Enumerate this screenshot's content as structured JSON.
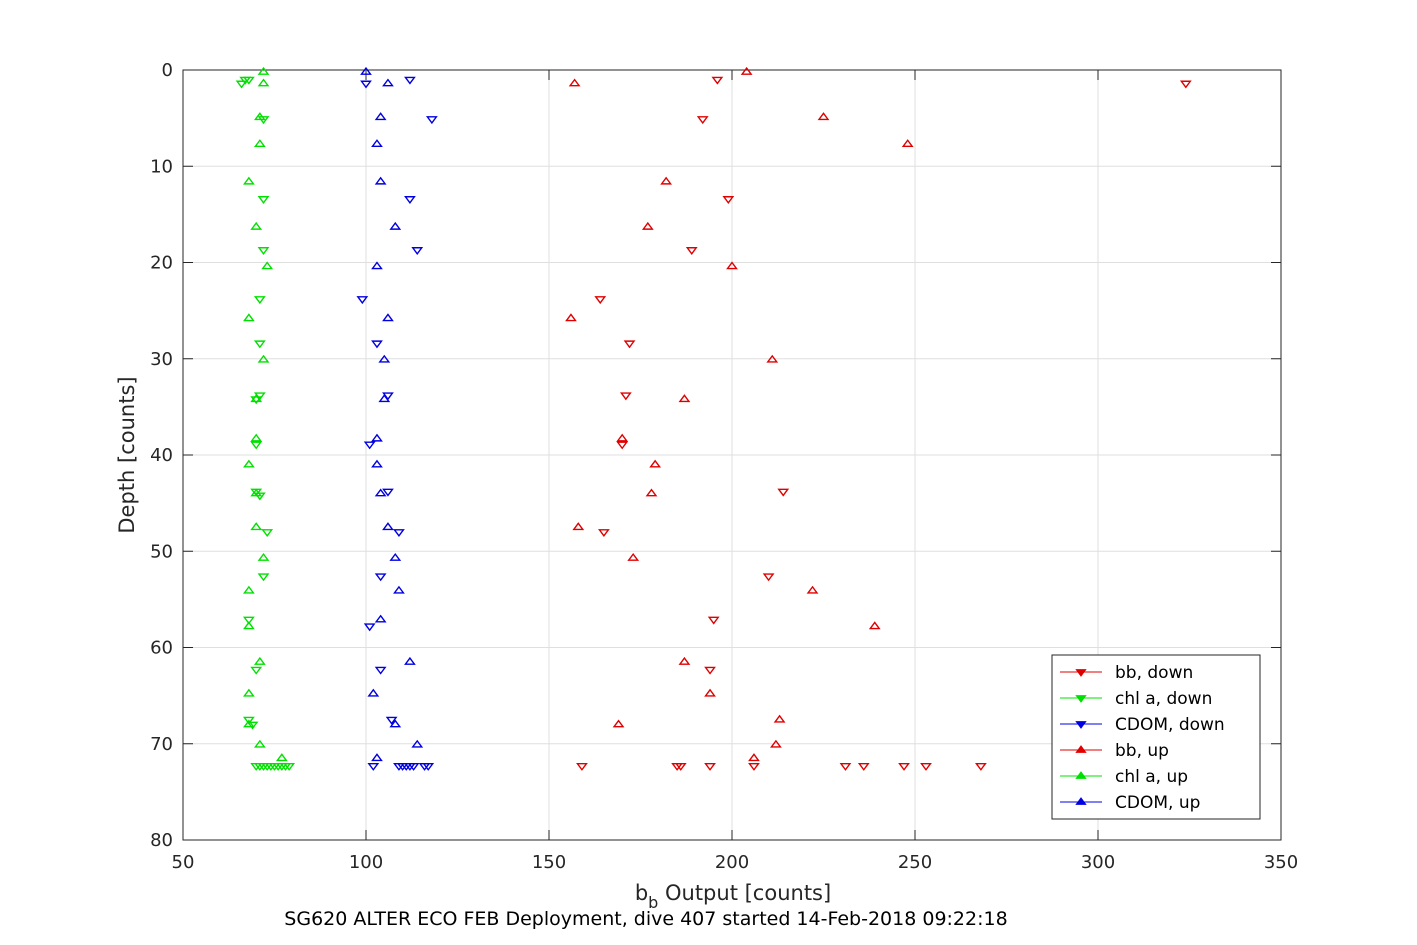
{
  "chart_data": {
    "type": "scatter",
    "xlabel_main": "b",
    "xlabel_sub": "b",
    "xlabel_rest": " Output [counts]",
    "ylabel": "Depth [counts]",
    "caption": "SG620 ALTER ECO FEB Deployment, dive 407 started 14-Feb-2018 09:22:18",
    "xlim": [
      50,
      350
    ],
    "ylim": [
      0,
      80
    ],
    "y_reversed": true,
    "grid": true,
    "legend_position": "bottom-right",
    "x_ticks": [
      "50",
      "100",
      "150",
      "200",
      "250",
      "300",
      "350"
    ],
    "y_ticks": [
      "0",
      "10",
      "20",
      "30",
      "40",
      "50",
      "60",
      "70",
      "80"
    ],
    "series": [
      {
        "name": "bb, down",
        "color": "#e00000",
        "marker": "triangle-down",
        "points": [
          [
            196,
            1
          ],
          [
            324,
            1.4
          ],
          [
            192,
            5.1
          ],
          [
            199,
            13.4
          ],
          [
            189,
            18.7
          ],
          [
            164,
            23.8
          ],
          [
            172,
            28.4
          ],
          [
            171,
            33.8
          ],
          [
            170,
            38.9
          ],
          [
            214,
            43.8
          ],
          [
            165,
            48
          ],
          [
            210,
            52.6
          ],
          [
            195,
            57.1
          ],
          [
            194,
            62.3
          ],
          [
            159,
            72.3
          ],
          [
            185,
            72.3
          ],
          [
            186,
            72.3
          ],
          [
            194,
            72.3
          ],
          [
            206,
            72.3
          ],
          [
            231,
            72.3
          ],
          [
            236,
            72.3
          ],
          [
            247,
            72.3
          ],
          [
            253,
            72.3
          ],
          [
            268,
            72.3
          ]
        ]
      },
      {
        "name": "chl a, down",
        "color": "#00e000",
        "marker": "triangle-down",
        "points": [
          [
            67,
            1
          ],
          [
            68,
            1
          ],
          [
            66,
            1.4
          ],
          [
            72,
            5.1
          ],
          [
            72,
            13.4
          ],
          [
            72,
            18.7
          ],
          [
            71,
            23.8
          ],
          [
            71,
            28.4
          ],
          [
            71,
            33.8
          ],
          [
            70,
            34.2
          ],
          [
            70,
            38.9
          ],
          [
            70,
            43.8
          ],
          [
            71,
            44.2
          ],
          [
            73,
            48
          ],
          [
            72,
            52.6
          ],
          [
            68,
            57.1
          ],
          [
            70,
            62.3
          ],
          [
            68,
            67.5
          ],
          [
            69,
            68
          ],
          [
            70,
            72.3
          ],
          [
            71,
            72.3
          ],
          [
            72,
            72.3
          ],
          [
            73,
            72.3
          ],
          [
            74,
            72.3
          ],
          [
            75,
            72.3
          ],
          [
            76,
            72.3
          ],
          [
            77,
            72.3
          ],
          [
            78,
            72.3
          ],
          [
            79,
            72.3
          ]
        ]
      },
      {
        "name": "CDOM, down",
        "color": "#0000e0",
        "marker": "triangle-down",
        "points": [
          [
            112,
            1
          ],
          [
            100,
            1.4
          ],
          [
            118,
            5.1
          ],
          [
            112,
            13.4
          ],
          [
            114,
            18.7
          ],
          [
            99,
            23.8
          ],
          [
            103,
            28.4
          ],
          [
            106,
            33.8
          ],
          [
            101,
            38.9
          ],
          [
            106,
            43.8
          ],
          [
            109,
            48
          ],
          [
            104,
            52.6
          ],
          [
            101,
            57.8
          ],
          [
            104,
            62.3
          ],
          [
            107,
            67.5
          ],
          [
            102,
            72.3
          ],
          [
            109,
            72.3
          ],
          [
            110,
            72.3
          ],
          [
            111,
            72.3
          ],
          [
            112,
            72.3
          ],
          [
            113,
            72.3
          ],
          [
            116,
            72.3
          ],
          [
            117,
            72.3
          ]
        ]
      },
      {
        "name": "bb, up",
        "color": "#e00000",
        "marker": "triangle-up",
        "points": [
          [
            204,
            0.2
          ],
          [
            157,
            1.4
          ],
          [
            225,
            4.9
          ],
          [
            248,
            7.7
          ],
          [
            182,
            11.6
          ],
          [
            177,
            16.3
          ],
          [
            200,
            20.4
          ],
          [
            156,
            25.8
          ],
          [
            211,
            30.1
          ],
          [
            187,
            34.2
          ],
          [
            170,
            38.3
          ],
          [
            179,
            41
          ],
          [
            178,
            44
          ],
          [
            158,
            47.5
          ],
          [
            173,
            50.7
          ],
          [
            222,
            54.1
          ],
          [
            239,
            57.8
          ],
          [
            187,
            61.5
          ],
          [
            194,
            64.8
          ],
          [
            169,
            68
          ],
          [
            213,
            67.5
          ],
          [
            212,
            70.1
          ],
          [
            206,
            71.5
          ]
        ]
      },
      {
        "name": "chl a, up",
        "color": "#00e000",
        "marker": "triangle-up",
        "points": [
          [
            72,
            0.2
          ],
          [
            72,
            1.4
          ],
          [
            71,
            4.9
          ],
          [
            71,
            7.7
          ],
          [
            68,
            11.6
          ],
          [
            70,
            16.3
          ],
          [
            73,
            20.4
          ],
          [
            68,
            25.8
          ],
          [
            72,
            30.1
          ],
          [
            70,
            34.2
          ],
          [
            70,
            38.3
          ],
          [
            68,
            41
          ],
          [
            70,
            44
          ],
          [
            70,
            47.5
          ],
          [
            72,
            50.7
          ],
          [
            68,
            54.1
          ],
          [
            68,
            57.8
          ],
          [
            71,
            61.5
          ],
          [
            68,
            64.8
          ],
          [
            68,
            68
          ],
          [
            71,
            70.1
          ],
          [
            77,
            71.5
          ]
        ]
      },
      {
        "name": "CDOM, up",
        "color": "#0000e0",
        "marker": "triangle-up",
        "points": [
          [
            100,
            0.2
          ],
          [
            106,
            1.4
          ],
          [
            104,
            4.9
          ],
          [
            103,
            7.7
          ],
          [
            104,
            11.6
          ],
          [
            108,
            16.3
          ],
          [
            103,
            20.4
          ],
          [
            106,
            25.8
          ],
          [
            105,
            30.1
          ],
          [
            105,
            34.2
          ],
          [
            103,
            38.3
          ],
          [
            103,
            41
          ],
          [
            104,
            44
          ],
          [
            106,
            47.5
          ],
          [
            108,
            50.7
          ],
          [
            109,
            54.1
          ],
          [
            104,
            57.1
          ],
          [
            112,
            61.5
          ],
          [
            102,
            64.8
          ],
          [
            108,
            68
          ],
          [
            114,
            70.1
          ],
          [
            103,
            71.5
          ]
        ]
      }
    ]
  }
}
